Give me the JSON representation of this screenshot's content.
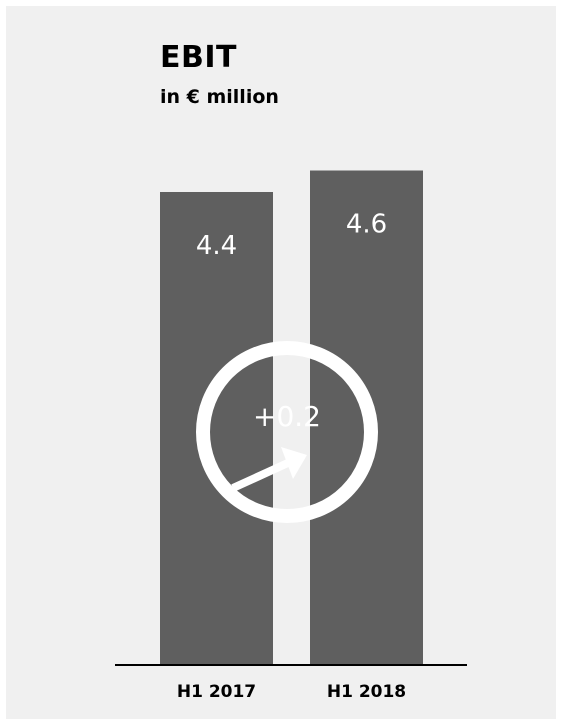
{
  "title": "EBIT",
  "subtitle": "in € million",
  "chart_data": {
    "type": "bar",
    "title": "EBIT",
    "subtitle": "in € million",
    "categories": [
      "H1 2017",
      "H1 2018"
    ],
    "values": [
      4.4,
      4.6
    ],
    "value_labels": [
      "4.4",
      "4.6"
    ],
    "change_label": "+0.2",
    "change_direction": "up",
    "grid": false,
    "colors": {
      "bar": "#5f5f5f",
      "background": "#f0f0f0",
      "badge": "#ffffff",
      "axis": "#000000"
    }
  }
}
